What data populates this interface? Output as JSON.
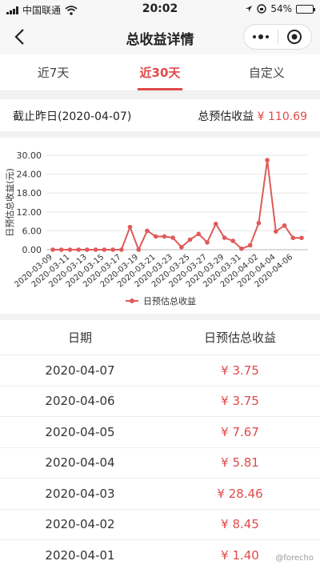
{
  "status": {
    "carrier": "中国联通",
    "time": "20:02",
    "battery": "54%",
    "battery_level": 0.54
  },
  "nav": {
    "title": "总收益详情"
  },
  "tabs": [
    {
      "label": "近7天"
    },
    {
      "label": "近30天"
    },
    {
      "label": "自定义"
    }
  ],
  "summary": {
    "asof": "截止昨日(2020-04-07)",
    "total_label": "总预估收益",
    "total_value": "¥ 110.69"
  },
  "chart_data": {
    "type": "line",
    "ylabel": "日预估总收益(元)",
    "ylim": [
      0,
      30
    ],
    "yticks": [
      "0.00",
      "6.00",
      "12.00",
      "18.00",
      "24.00",
      "30.00"
    ],
    "x": [
      "2020-03-09",
      "2020-03-10",
      "2020-03-11",
      "2020-03-12",
      "2020-03-13",
      "2020-03-14",
      "2020-03-15",
      "2020-03-16",
      "2020-03-17",
      "2020-03-18",
      "2020-03-19",
      "2020-03-20",
      "2020-03-21",
      "2020-03-22",
      "2020-03-23",
      "2020-03-24",
      "2020-03-25",
      "2020-03-26",
      "2020-03-27",
      "2020-03-28",
      "2020-03-29",
      "2020-03-30",
      "2020-03-31",
      "2020-04-01",
      "2020-04-02",
      "2020-04-03",
      "2020-04-04",
      "2020-04-05",
      "2020-04-06",
      "2020-04-07"
    ],
    "xtick_labels": [
      "2020-03-09",
      "2020-03-11",
      "2020-03-13",
      "2020-03-15",
      "2020-03-17",
      "2020-03-19",
      "2020-03-21",
      "2020-03-23",
      "2020-03-25",
      "2020-03-27",
      "2020-03-29",
      "2020-03-31",
      "2020-04-02",
      "2020-04-04",
      "2020-04-06"
    ],
    "series": [
      {
        "name": "日预估总收益",
        "color": "#e05a5a",
        "values": [
          0,
          0,
          0,
          0,
          0,
          0,
          0,
          0,
          0,
          7.2,
          0,
          6.0,
          4.2,
          4.2,
          3.8,
          0.8,
          3.2,
          5.0,
          2.3,
          8.2,
          3.8,
          2.8,
          0.3,
          1.4,
          8.45,
          28.46,
          5.81,
          7.67,
          3.75,
          3.75
        ]
      }
    ],
    "legend": "bottom-center",
    "grid": true
  },
  "table": {
    "headers": [
      "日期",
      "日预估总收益"
    ],
    "rows": [
      {
        "date": "2020-04-07",
        "value": "¥ 3.75"
      },
      {
        "date": "2020-04-06",
        "value": "¥ 3.75"
      },
      {
        "date": "2020-04-05",
        "value": "¥ 7.67"
      },
      {
        "date": "2020-04-04",
        "value": "¥ 5.81"
      },
      {
        "date": "2020-04-03",
        "value": "¥ 28.46"
      },
      {
        "date": "2020-04-02",
        "value": "¥ 8.45"
      },
      {
        "date": "2020-04-01",
        "value": "¥ 1.40"
      }
    ]
  },
  "watermark": "@forecho"
}
